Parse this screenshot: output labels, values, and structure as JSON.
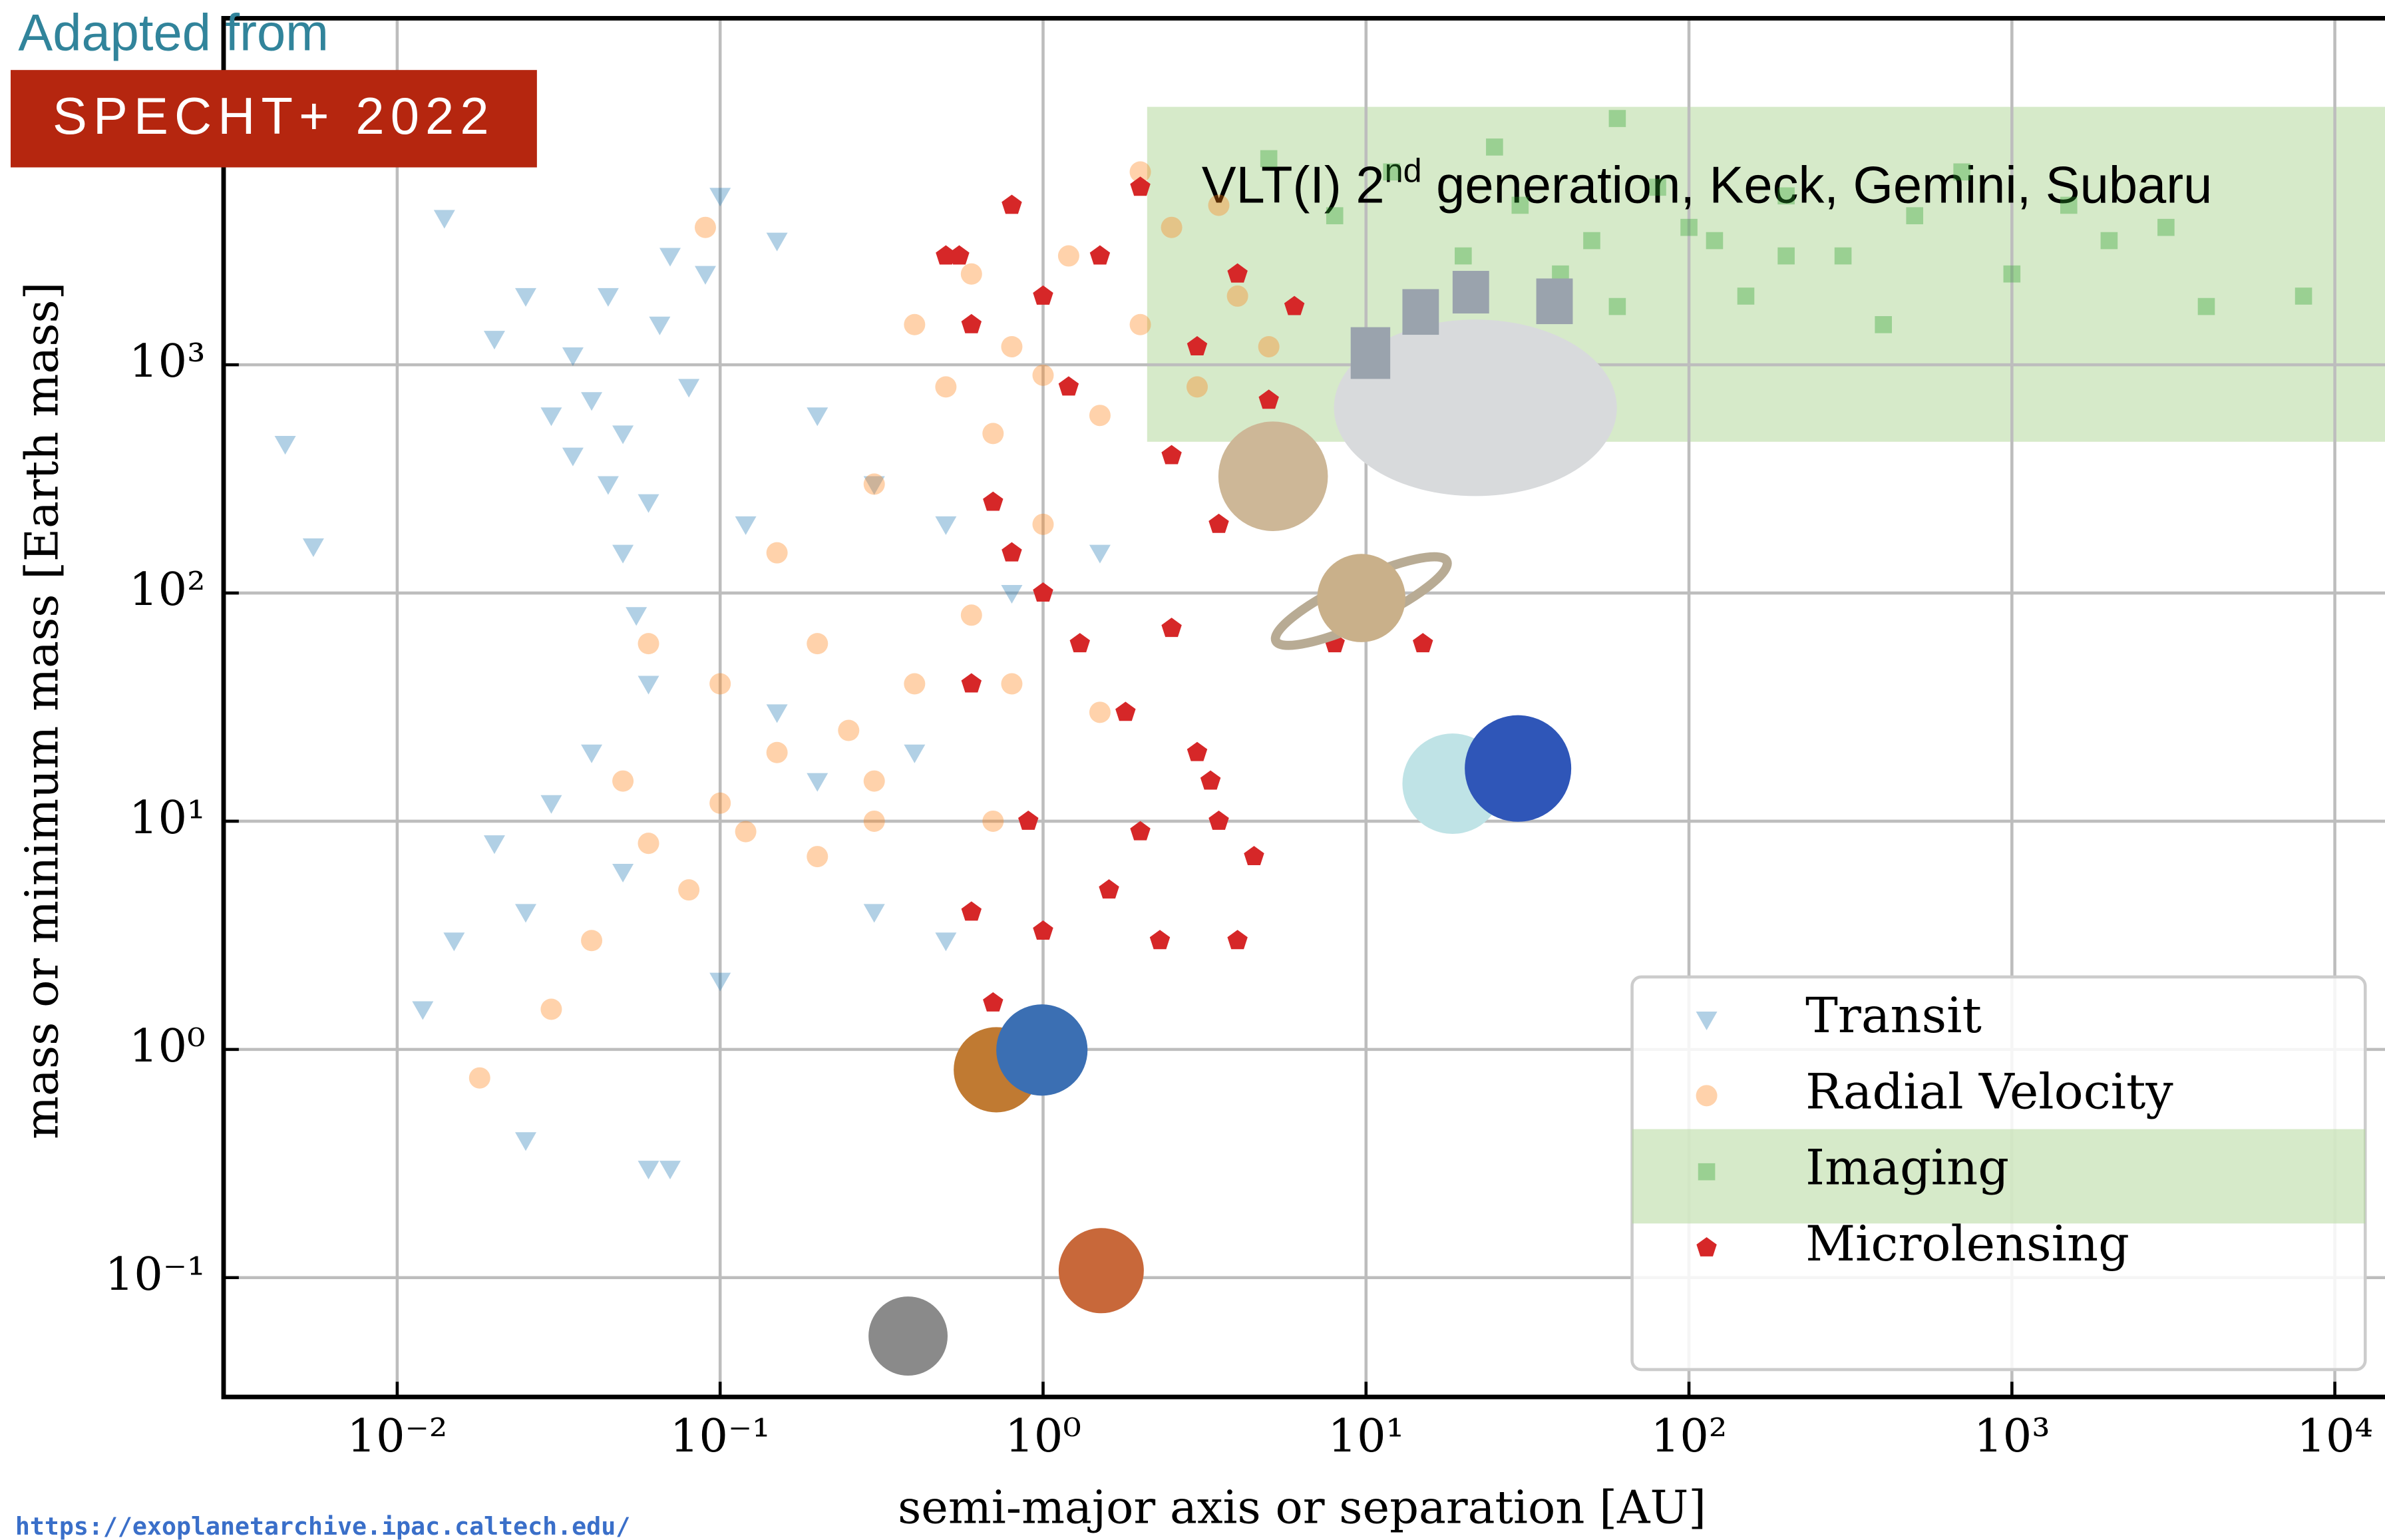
{
  "source_note": "Adapted from",
  "badge": "SPECHT+ 2022",
  "url": "https://exoplanetarchive.ipac.caltech.edu/",
  "chart_data": {
    "type": "scatter",
    "x_label": "semi-major axis or separation [AU]",
    "y_label": "mass or minimum mass [Earth mass]",
    "x_log": true,
    "y_log": true,
    "grid": true,
    "legend_position": "lower right",
    "xlim": [
      0.0029,
      14300
    ],
    "ylim": [
      0.03,
      33000
    ],
    "xticks": [
      {
        "value": 0.01,
        "label": "10⁻²"
      },
      {
        "value": 0.1,
        "label": "10⁻¹"
      },
      {
        "value": 1,
        "label": "10⁰"
      },
      {
        "value": 10,
        "label": "10¹"
      },
      {
        "value": 100,
        "label": "10²"
      },
      {
        "value": 1000,
        "label": "10³"
      },
      {
        "value": 10000,
        "label": "10⁴"
      }
    ],
    "yticks": [
      {
        "value": 0.1,
        "label": "10⁻¹"
      },
      {
        "value": 1,
        "label": "10⁰"
      },
      {
        "value": 10,
        "label": "10¹"
      },
      {
        "value": 100,
        "label": "10²"
      },
      {
        "value": 1000,
        "label": "10³"
      }
    ],
    "highlight": {
      "color": "#b5d99c",
      "xlim": [
        2.1,
        14300
      ],
      "ylim": [
        460,
        13500
      ],
      "text": "VLT(I) 2",
      "superscript": "nd",
      "text_after": " generation, Keck, Gemini, Subaru"
    },
    "series": [
      {
        "name": "Transit",
        "color": "#1f77b4",
        "marker": "triangle-down",
        "opacity": 0.35,
        "x": [
          0.0045,
          0.0055,
          0.014,
          0.02,
          0.025,
          0.03,
          0.035,
          0.04,
          0.045,
          0.05,
          0.055,
          0.06,
          0.065,
          0.07,
          0.08,
          0.09,
          0.1,
          0.12,
          0.15,
          0.2,
          0.012,
          0.015,
          0.02,
          0.025,
          0.03,
          0.04,
          0.05,
          0.06,
          0.07,
          0.025,
          0.1,
          0.15,
          0.2,
          0.3,
          0.4,
          0.5,
          0.3,
          0.5,
          0.8,
          1.5,
          0.045,
          0.035,
          0.05,
          0.06
        ],
        "values": [
          450,
          160,
          4400,
          1300,
          2000,
          600,
          1100,
          700,
          300,
          150,
          80,
          40,
          1500,
          3000,
          800,
          2500,
          5500,
          200,
          3500,
          600,
          1.5,
          3,
          8,
          4,
          12,
          20,
          6,
          0.3,
          0.3,
          0.4,
          2,
          30,
          15,
          4,
          20,
          3,
          300,
          200,
          100,
          150,
          2000,
          400,
          500,
          250
        ]
      },
      {
        "name": "Radial Velocity",
        "color": "#ff7f0e",
        "marker": "circle",
        "opacity": 0.35,
        "x": [
          0.05,
          0.06,
          0.08,
          0.1,
          0.12,
          0.15,
          0.2,
          0.25,
          0.3,
          0.018,
          0.03,
          0.04,
          0.09,
          0.15,
          0.2,
          0.3,
          0.4,
          0.5,
          0.6,
          0.7,
          0.8,
          1,
          1.2,
          1.5,
          2,
          2.5,
          3,
          4,
          5,
          1,
          0.8,
          0.6,
          0.4,
          0.7,
          1.5,
          2,
          3.5,
          0.3,
          0.1,
          0.06
        ],
        "values": [
          15,
          8,
          5,
          12,
          9,
          20,
          7,
          25,
          15,
          0.75,
          1.5,
          3,
          4000,
          150,
          60,
          300,
          1500,
          800,
          2500,
          500,
          1200,
          900,
          3000,
          600,
          1500,
          4000,
          800,
          2000,
          1200,
          200,
          40,
          80,
          40,
          10,
          30,
          7000,
          5000,
          10,
          40,
          60
        ]
      },
      {
        "name": "Imaging",
        "color": "#2ca02c",
        "marker": "square",
        "opacity": 0.35,
        "x": [
          5,
          8,
          12,
          20,
          25,
          30,
          40,
          50,
          60,
          80,
          100,
          150,
          200,
          300,
          400,
          500,
          700,
          1000,
          1500,
          2000,
          3000,
          4000,
          8000,
          60,
          200,
          120
        ],
        "values": [
          8000,
          4500,
          7000,
          3000,
          9000,
          5000,
          2500,
          3500,
          1800,
          6000,
          4000,
          2000,
          5500,
          3000,
          1500,
          4500,
          7000,
          2500,
          5000,
          3500,
          4000,
          1800,
          2000,
          12000,
          3000,
          3500
        ]
      },
      {
        "name": "Microlensing",
        "color": "#d62728",
        "marker": "pentagon",
        "opacity": 1,
        "x": [
          0.5,
          0.6,
          0.8,
          1,
          1.2,
          1.5,
          2,
          2.5,
          3,
          3.5,
          4,
          5,
          6,
          0.7,
          0.8,
          1,
          1.3,
          1.8,
          2.5,
          3,
          3.5,
          4.5,
          4,
          1,
          0.6,
          0.9,
          1.6,
          2.3,
          0.7,
          8,
          15,
          0.6,
          2,
          3.3,
          0.55
        ],
        "values": [
          3000,
          1500,
          5000,
          2000,
          800,
          3000,
          6000,
          400,
          1200,
          200,
          2500,
          700,
          1800,
          250,
          150,
          100,
          60,
          30,
          70,
          20,
          10,
          7,
          3,
          3.3,
          4,
          10,
          5,
          3,
          1.6,
          60,
          60,
          40,
          9,
          15,
          3000
        ]
      }
    ]
  }
}
